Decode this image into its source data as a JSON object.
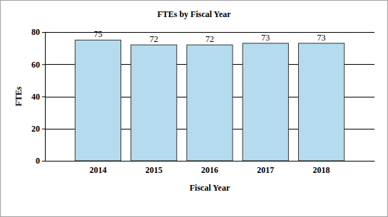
{
  "chart_data": {
    "type": "bar",
    "title": "FTEs by Fiscal Year",
    "x_label": "Fiscal Year",
    "y_label": "FTEs",
    "categories": [
      "2014",
      "2015",
      "2016",
      "2017",
      "2018"
    ],
    "values": [
      75,
      72,
      72,
      73,
      73
    ],
    "color": "#b4dcee",
    "ylim": [
      0,
      80
    ],
    "yticks": [
      0,
      20,
      40,
      60,
      80
    ],
    "grid": true,
    "data_labels": true
  }
}
